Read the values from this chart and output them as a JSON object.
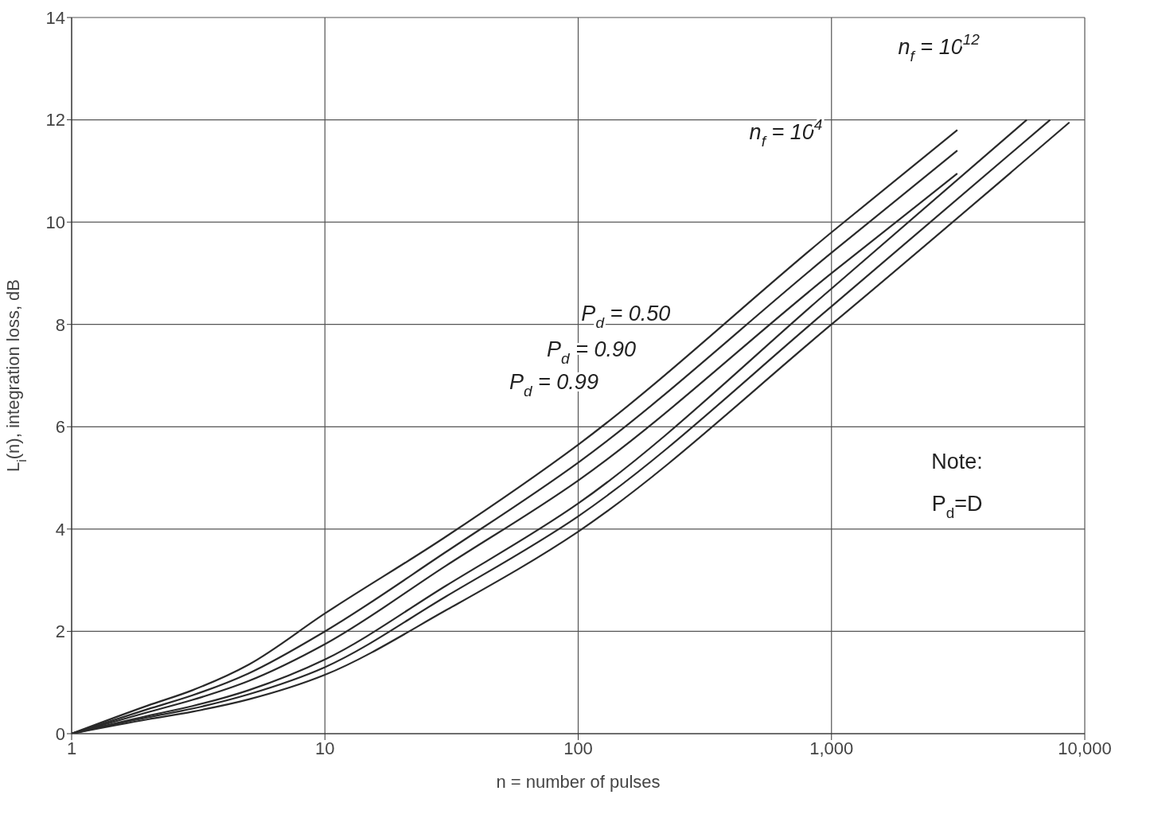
{
  "chart_data": {
    "type": "line",
    "xlabel": "n = number of pulses",
    "ylabel": "L$_{i}$(n), integration loss, dB",
    "log": "x",
    "xlim": [
      1,
      10000
    ],
    "xticks": [
      1,
      10,
      100,
      {
        "value": 1000,
        "label": "1,000"
      },
      {
        "value": 10000,
        "label": "10,000"
      }
    ],
    "ylim": [
      0,
      14
    ],
    "yticks": [
      0,
      2,
      4,
      6,
      8,
      10,
      12,
      14
    ],
    "grid": true,
    "marker": "none",
    "line_style": "solid",
    "series": [
      {
        "color": "#2a2a2a",
        "x": [
          1,
          2,
          3,
          5,
          10,
          30,
          100,
          1000,
          3140
        ],
        "values": [
          0,
          0.55,
          0.85,
          1.35,
          2.35,
          3.85,
          5.65,
          9.8,
          11.8
        ]
      },
      {
        "color": "#2a2a2a",
        "x": [
          1,
          2,
          3,
          5,
          10,
          30,
          100,
          1000,
          3140
        ],
        "values": [
          0,
          0.48,
          0.75,
          1.18,
          2.0,
          3.55,
          5.3,
          9.4,
          11.4
        ]
      },
      {
        "color": "#2a2a2a",
        "x": [
          1,
          2,
          3,
          5,
          10,
          30,
          100,
          1000,
          3140
        ],
        "values": [
          0,
          0.42,
          0.66,
          1.03,
          1.75,
          3.28,
          4.95,
          9.0,
          10.95
        ]
      },
      {
        "color": "#2a2a2a",
        "x": [
          1,
          2,
          3,
          5,
          10,
          30,
          100,
          1000,
          5900
        ],
        "values": [
          0,
          0.35,
          0.54,
          0.85,
          1.45,
          2.89,
          4.5,
          8.7,
          12.0
        ]
      },
      {
        "color": "#2a2a2a",
        "x": [
          1,
          2,
          3,
          5,
          10,
          30,
          100,
          1000,
          7300
        ],
        "values": [
          0,
          0.32,
          0.49,
          0.77,
          1.3,
          2.68,
          4.25,
          8.35,
          12.0
        ]
      },
      {
        "color": "#2a2a2a",
        "x": [
          1,
          2,
          3,
          5,
          10,
          30,
          100,
          1000,
          8700
        ],
        "values": [
          0,
          0.28,
          0.43,
          0.67,
          1.15,
          2.41,
          3.95,
          8.0,
          11.95
        ]
      }
    ],
    "annotations": [
      "n$_{f}$ = 10$^{4}$",
      "n$_{f}$ = 10$^{12}$",
      "P$_{d}$ = 0.50",
      "P$_{d}$ = 0.90",
      "P$_{d}$ = 0.99",
      "Note:",
      "P$_{d}$=D"
    ]
  }
}
